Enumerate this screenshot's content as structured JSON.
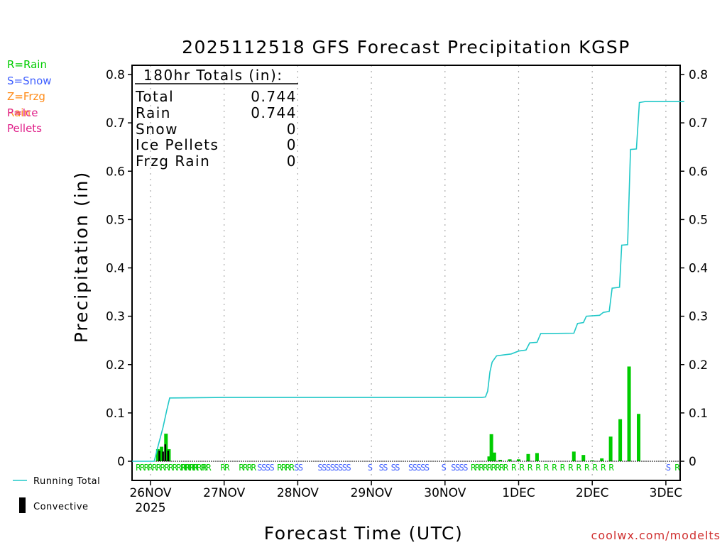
{
  "chart_data": {
    "type": "bar+line",
    "title": "2025112518 GFS Forecast Precipitation KGSP",
    "ylabel": "Precipitation (in)",
    "xlabel": "Forecast Time (UTC)",
    "ylim": [
      -0.04,
      0.82
    ],
    "yticks": [
      0,
      0.1,
      0.2,
      0.3,
      0.4,
      0.5,
      0.6,
      0.7,
      0.8
    ],
    "ytick_labels": [
      "0",
      "0.1",
      "0.2",
      "0.3",
      "0.4",
      "0.5",
      "0.6",
      "0.7",
      "0.8"
    ],
    "x_range_days": [
      -0.25,
      7.25
    ],
    "x_ticks": [
      {
        "day": 0,
        "label": "26NOV"
      },
      {
        "day": 1,
        "label": "27NOV"
      },
      {
        "day": 2,
        "label": "28NOV"
      },
      {
        "day": 3,
        "label": "29NOV"
      },
      {
        "day": 4,
        "label": "30NOV"
      },
      {
        "day": 5,
        "label": "1DEC"
      },
      {
        "day": 6,
        "label": "2DEC"
      },
      {
        "day": 7,
        "label": "3DEC"
      }
    ],
    "year_label": "2025",
    "running_total": [
      [
        -0.25,
        0
      ],
      [
        0.05,
        0
      ],
      [
        0.1,
        0.03
      ],
      [
        0.17,
        0.07
      ],
      [
        0.22,
        0.105
      ],
      [
        0.26,
        0.131
      ],
      [
        1.0,
        0.132
      ],
      [
        4.5,
        0.132
      ],
      [
        4.55,
        0.133
      ],
      [
        4.58,
        0.145
      ],
      [
        4.61,
        0.185
      ],
      [
        4.64,
        0.205
      ],
      [
        4.7,
        0.218
      ],
      [
        4.8,
        0.22
      ],
      [
        4.9,
        0.222
      ],
      [
        5.0,
        0.228
      ],
      [
        5.1,
        0.23
      ],
      [
        5.15,
        0.245
      ],
      [
        5.25,
        0.246
      ],
      [
        5.3,
        0.264
      ],
      [
        5.75,
        0.265
      ],
      [
        5.8,
        0.285
      ],
      [
        5.88,
        0.287
      ],
      [
        5.92,
        0.3
      ],
      [
        6.1,
        0.302
      ],
      [
        6.15,
        0.308
      ],
      [
        6.23,
        0.31
      ],
      [
        6.27,
        0.358
      ],
      [
        6.37,
        0.36
      ],
      [
        6.4,
        0.447
      ],
      [
        6.48,
        0.448
      ],
      [
        6.52,
        0.645
      ],
      [
        6.6,
        0.646
      ],
      [
        6.64,
        0.742
      ],
      [
        6.72,
        0.744
      ],
      [
        7.25,
        0.744
      ]
    ],
    "series": [
      {
        "name": "Rain",
        "color": "#00cc00",
        "bars": [
          [
            0.1,
            0.025
          ],
          [
            0.15,
            0.03
          ],
          [
            0.21,
            0.057
          ],
          [
            0.25,
            0.025
          ],
          [
            4.6,
            0.01
          ],
          [
            4.63,
            0.056
          ],
          [
            4.67,
            0.018
          ],
          [
            4.75,
            0.003
          ],
          [
            4.88,
            0.004
          ],
          [
            5.0,
            0.004
          ],
          [
            5.13,
            0.015
          ],
          [
            5.25,
            0.017
          ],
          [
            5.75,
            0.02
          ],
          [
            5.88,
            0.013
          ],
          [
            6.0,
            0.002
          ],
          [
            6.13,
            0.006
          ],
          [
            6.25,
            0.051
          ],
          [
            6.38,
            0.087
          ],
          [
            6.5,
            0.196
          ],
          [
            6.63,
            0.098
          ]
        ]
      },
      {
        "name": "Convective",
        "color": "#000000",
        "bars": [
          [
            0.12,
            0.022
          ],
          [
            0.17,
            0.02
          ],
          [
            0.2,
            0.035
          ],
          [
            0.24,
            0.022
          ]
        ]
      }
    ],
    "ptype_strip": [
      {
        "day": -0.2,
        "label": "RRRRRRRRRRRRRRRRR",
        "color": "#00cc00"
      },
      {
        "day": 0.42,
        "label": "RRRR",
        "color": "#00cc00"
      },
      {
        "day": 0.7,
        "label": "RR",
        "color": "#00cc00"
      },
      {
        "day": 0.95,
        "label": "RR",
        "color": "#00cc00"
      },
      {
        "day": 1.2,
        "label": "RRRR",
        "color": "#00cc00"
      },
      {
        "day": 1.45,
        "label": "SSSS",
        "color": "#4060ff"
      },
      {
        "day": 1.72,
        "label": "RRRR",
        "color": "#00cc00"
      },
      {
        "day": 1.95,
        "label": "SS",
        "color": "#4060ff"
      },
      {
        "day": 2.27,
        "label": "SSSSSSSS",
        "color": "#4060ff"
      },
      {
        "day": 2.95,
        "label": "S",
        "color": "#4060ff"
      },
      {
        "day": 3.1,
        "label": "SS S",
        "color": "#4060ff"
      },
      {
        "day": 3.32,
        "label": "S",
        "color": "#4060ff"
      },
      {
        "day": 3.5,
        "label": "SSSSS",
        "color": "#4060ff"
      },
      {
        "day": 3.95,
        "label": "S",
        "color": "#4060ff"
      },
      {
        "day": 4.08,
        "label": "SSSS",
        "color": "#4060ff"
      },
      {
        "day": 4.35,
        "label": "RRRRRRRRR",
        "color": "#00cc00"
      },
      {
        "day": 4.9,
        "label": "R R R R R R R R R R R R R",
        "color": "#00cc00"
      },
      {
        "day": 7.0,
        "label": "S",
        "color": "#4060ff"
      },
      {
        "day": 7.12,
        "label": "R",
        "color": "#00cc00"
      }
    ]
  },
  "totals_box": {
    "title": "180hr Totals (in):",
    "rows": [
      {
        "label": "Total",
        "value": "0.744"
      },
      {
        "label": "Rain",
        "value": "0.744"
      },
      {
        "label": "Snow",
        "value": "0"
      },
      {
        "label": "Ice Pellets",
        "value": "0"
      },
      {
        "label": "Frzg Rain",
        "value": "0"
      }
    ]
  },
  "ptype_legend": [
    {
      "label": "R=Rain",
      "color": "#00cc00"
    },
    {
      "label": "S=Snow",
      "color": "#4060ff"
    },
    {
      "label": "Z=Frzg Rain",
      "color": "#ff8c1a"
    },
    {
      "label": "P=Ice Pellets",
      "color": "#e0208a"
    }
  ],
  "series_legend": {
    "running_total_label": "Running Total",
    "running_total_color": "#20c8c8",
    "convective_label": "Convective"
  },
  "footer": {
    "credit": "coolwx.com/modelts"
  }
}
